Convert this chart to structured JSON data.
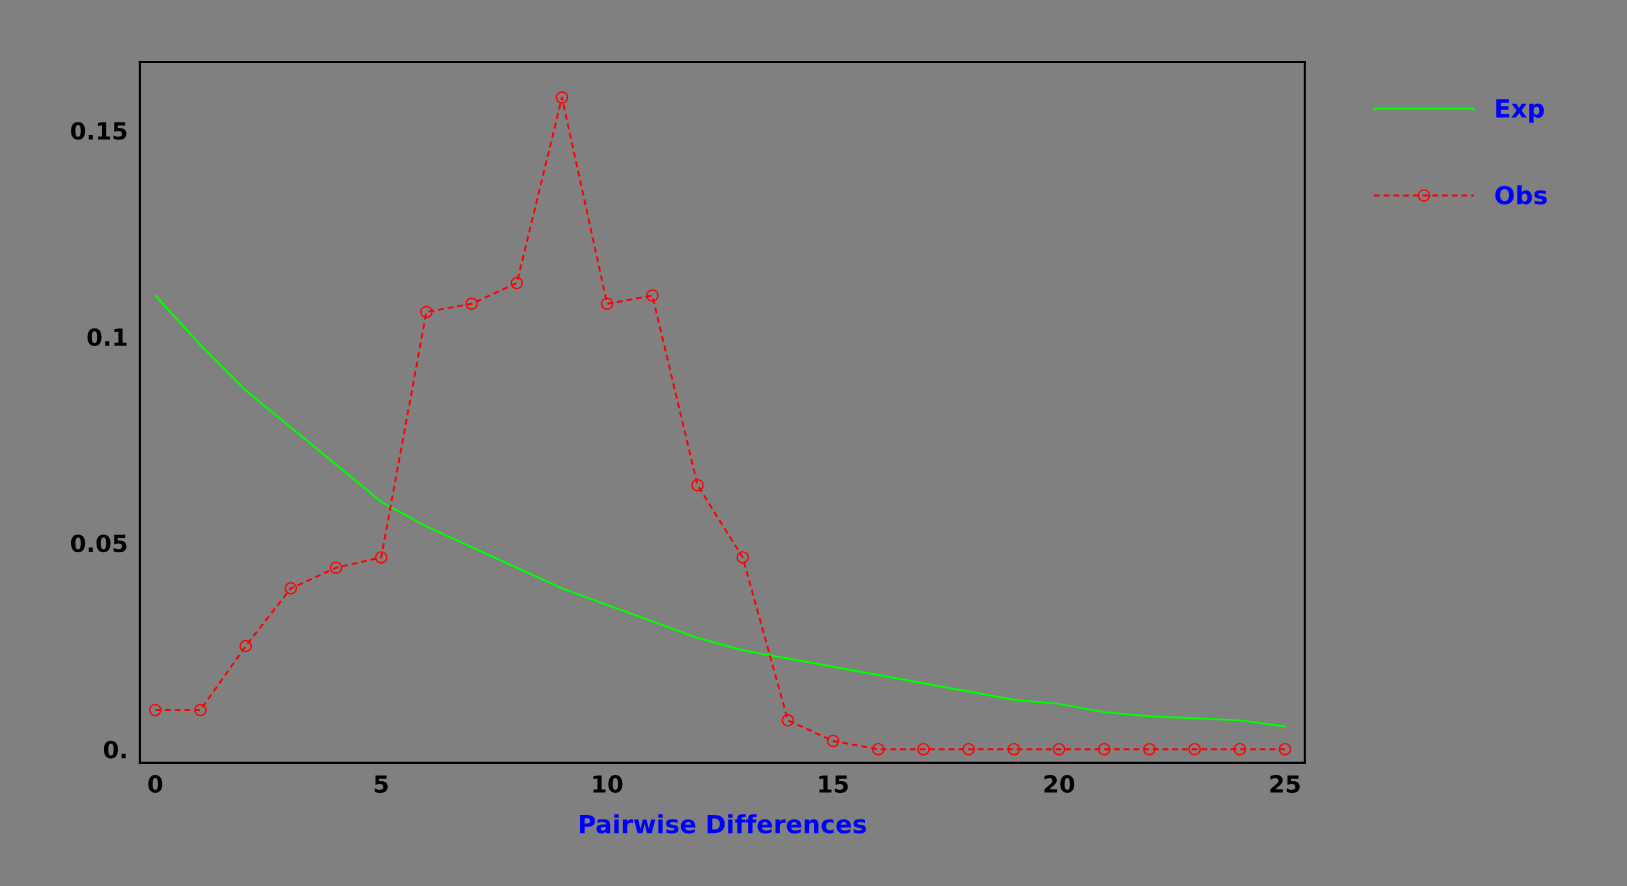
{
  "chart_data": {
    "type": "line",
    "xlabel": "Pairwise Differences",
    "x": [
      0,
      1,
      2,
      3,
      4,
      5,
      6,
      7,
      8,
      9,
      10,
      11,
      12,
      13,
      14,
      15,
      16,
      17,
      18,
      19,
      20,
      21,
      22,
      23,
      24,
      25
    ],
    "series": [
      {
        "name": "Exp",
        "color": "#00ff00",
        "marker": "none",
        "line_style": "solid",
        "values": [
          0.11,
          0.098,
          0.087,
          0.078,
          0.069,
          0.06,
          0.054,
          0.049,
          0.044,
          0.039,
          0.035,
          0.031,
          0.027,
          0.024,
          0.022,
          0.02,
          0.018,
          0.016,
          0.014,
          0.012,
          0.011,
          0.009,
          0.008,
          0.0075,
          0.007,
          0.0055
        ]
      },
      {
        "name": "Obs",
        "color": "#ff0000",
        "marker": "circle",
        "line_style": "dashed",
        "values": [
          0.0095,
          0.0095,
          0.025,
          0.039,
          0.044,
          0.0465,
          0.106,
          0.108,
          0.113,
          0.158,
          0.108,
          0.11,
          0.064,
          0.0465,
          0.007,
          0.002,
          0,
          0,
          0,
          0,
          0,
          0,
          0,
          0,
          0,
          0
        ]
      }
    ],
    "xlim": [
      -0.34,
      25.44
    ],
    "xticks": [
      0,
      5,
      10,
      15,
      20,
      25
    ],
    "ylim": [
      -0.0033,
      0.1666
    ],
    "yticks": [
      {
        "value": 0,
        "label": "0."
      },
      0.05,
      0.1,
      0.15
    ],
    "grid": false,
    "legend": "top right"
  }
}
